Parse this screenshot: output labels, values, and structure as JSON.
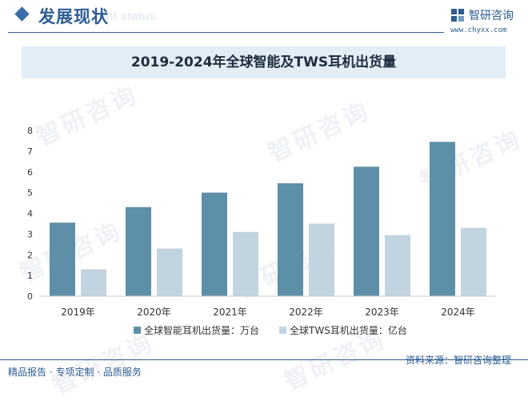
{
  "header": {
    "title": "发展现状",
    "subtitle": "ent status",
    "logo_name": "智研咨询",
    "logo_url": "www.chyxx.com"
  },
  "watermark": "智研咨询",
  "chart_data": {
    "type": "bar",
    "title": "2019-2024年全球智能及TWS耳机出货量",
    "categories": [
      "2019年",
      "2020年",
      "2021年",
      "2022年",
      "2023年",
      "2024年"
    ],
    "series": [
      {
        "name": "全球智能耳机出货量：万台",
        "color": "#5e8fa8",
        "values": [
          3.55,
          4.3,
          5.0,
          5.45,
          6.25,
          7.45
        ]
      },
      {
        "name": "全球TWS耳机出货量：亿台",
        "color": "#c2d4df",
        "values": [
          1.3,
          2.3,
          3.1,
          3.5,
          2.95,
          3.3
        ]
      }
    ],
    "yticks": [
      "0",
      "1",
      "2",
      "3",
      "4",
      "5",
      "6",
      "7",
      "8"
    ],
    "ylim": [
      0,
      8
    ],
    "grid": false,
    "legend": "bottom"
  },
  "footer": {
    "left": "精品报告 · 专项定制 · 品质服务",
    "source": "资料来源：智研咨询整理"
  }
}
